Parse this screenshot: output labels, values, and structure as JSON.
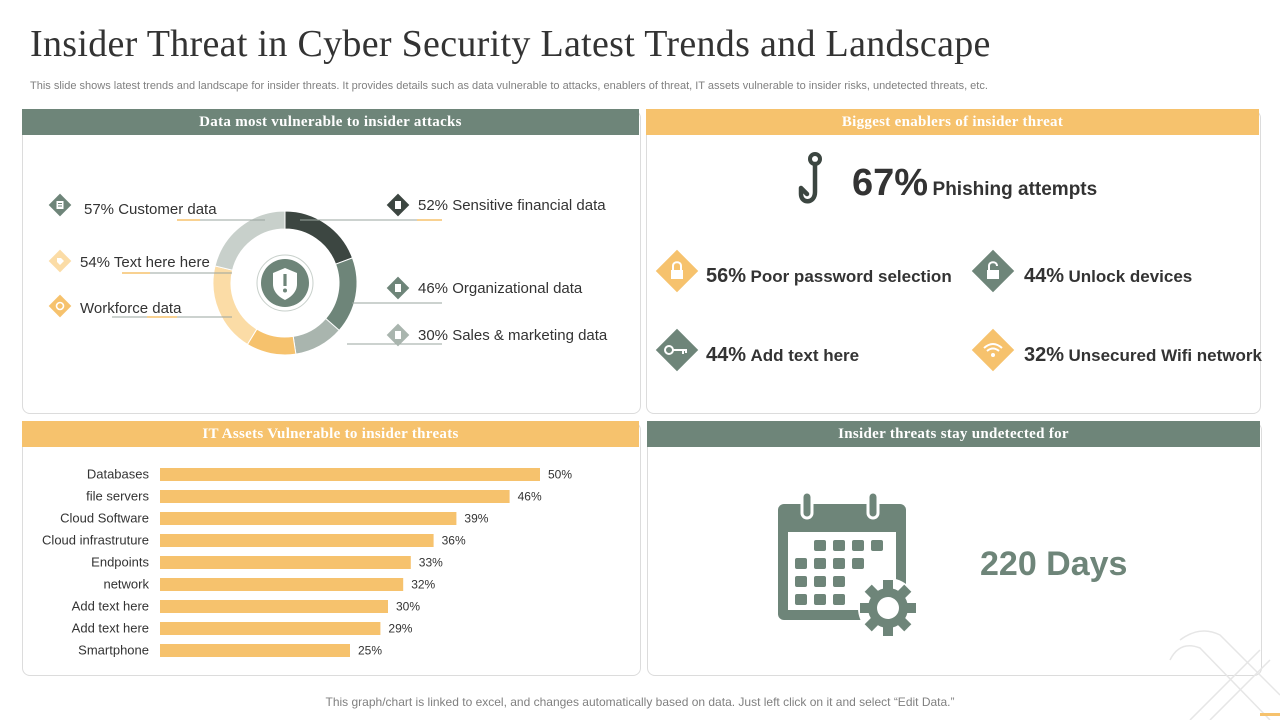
{
  "title": "Insider Threat in Cyber Security Latest Trends and Landscape",
  "subtitle": "This slide shows latest trends and landscape for insider threats. It provides details such as data vulnerable to attacks, enablers of threat, IT assets vulnerable to insider risks, undetected threats, etc.",
  "colors": {
    "grey": "#6e8579",
    "amber": "#f6c26d",
    "dark": "#3c4641"
  },
  "panels": {
    "vulnerable_data": {
      "header": "Data most vulnerable to insider attacks",
      "items": [
        {
          "label": "57% Customer data",
          "icon": "document-icon"
        },
        {
          "label": "54% Text here here",
          "icon": "tag-icon"
        },
        {
          "label": "Workforce data",
          "icon": "gear-icon"
        },
        {
          "label": "52% Sensitive financial data",
          "icon": "file-icon"
        },
        {
          "label": "46% Organizational data",
          "icon": "document-icon"
        },
        {
          "label": "30% Sales & marketing data",
          "icon": "chart-doc-icon"
        }
      ]
    },
    "enablers": {
      "header": "Biggest enablers  of insider threat",
      "main": {
        "pct": "67%",
        "label": "Phishing attempts"
      },
      "items": [
        {
          "pct": "56%",
          "label": "Poor password selection",
          "icon": "lock-icon"
        },
        {
          "pct": "44%",
          "label": "Unlock devices",
          "icon": "unlock-icon"
        },
        {
          "pct": "44%",
          "label": "Add text here",
          "icon": "key-icon"
        },
        {
          "pct": "32%",
          "label": "Unsecured Wifi network",
          "icon": "wifi-icon"
        }
      ]
    },
    "it_assets": {
      "header": "IT Assets Vulnerable to insider threats"
    },
    "undetected": {
      "header": "Insider threats stay undetected for",
      "value": "220 Days"
    }
  },
  "chart_data": [
    {
      "type": "pie",
      "title": "Data most vulnerable to insider attacks",
      "style": "donut",
      "categories": [
        "Sensitive financial data",
        "Organizational data",
        "Sales & marketing data",
        "Workforce data",
        "Text here here",
        "Customer data"
      ],
      "values": [
        52,
        46,
        30,
        30,
        54,
        57
      ],
      "colors": [
        "#3c4641",
        "#6e8579",
        "#a9b5ae",
        "#f6c26d",
        "#fbdca6",
        "#c8d0cb"
      ]
    },
    {
      "type": "bar",
      "orientation": "horizontal",
      "title": "IT Assets Vulnerable to insider threats",
      "categories": [
        "Databases",
        "file servers",
        "Cloud Software",
        "Cloud infrastruture",
        "Endpoints",
        "network",
        "Add text here",
        "Add text here",
        "Smartphone"
      ],
      "values": [
        50,
        46,
        39,
        36,
        33,
        32,
        30,
        29,
        25
      ],
      "value_labels": [
        "50%",
        "46%",
        "39%",
        "36%",
        "33%",
        "32%",
        "30%",
        "29%",
        "25%"
      ],
      "xlim": [
        0,
        100
      ]
    }
  ],
  "footer": "This graph/chart is linked to excel,  and changes automatically based on data. Just left click on it and select “Edit Data.”"
}
